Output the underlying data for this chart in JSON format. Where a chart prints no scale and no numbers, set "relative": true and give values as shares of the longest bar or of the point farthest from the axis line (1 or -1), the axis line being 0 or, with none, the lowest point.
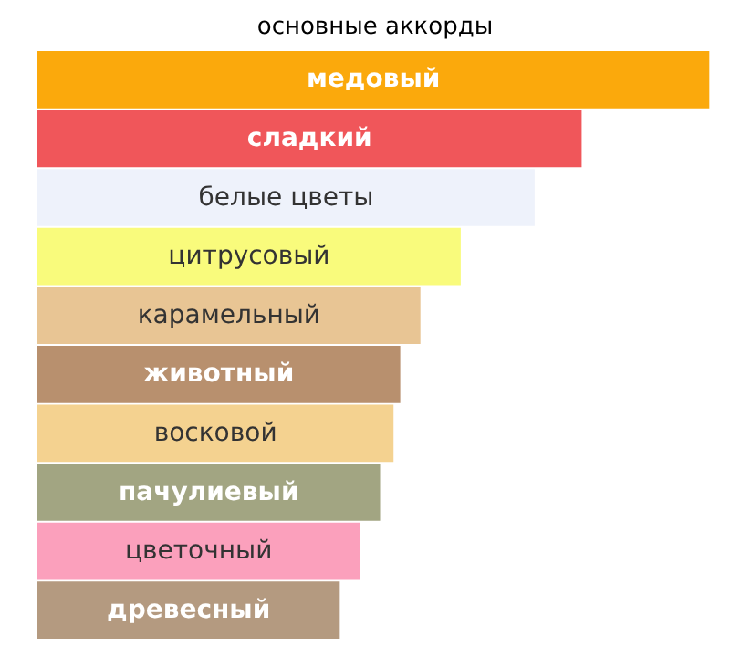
{
  "chart_data": {
    "type": "bar",
    "orientation": "horizontal",
    "relative": true,
    "title": "основные аккорды",
    "categories": [
      "медовый",
      "сладкий",
      "белые цветы",
      "цитрусовый",
      "карамельный",
      "животный",
      "восковой",
      "пачулиевый",
      "цветочный",
      "древесный"
    ],
    "values": [
      1,
      0.81,
      0.74,
      0.63,
      0.57,
      0.54,
      0.53,
      0.51,
      0.48,
      0.45
    ],
    "colors": [
      "#fba90c",
      "#f0565a",
      "#eef2fb",
      "#f9fb7c",
      "#e8c594",
      "#b8906e",
      "#f4d290",
      "#a2a582",
      "#fba0bc",
      "#b49a80"
    ]
  }
}
